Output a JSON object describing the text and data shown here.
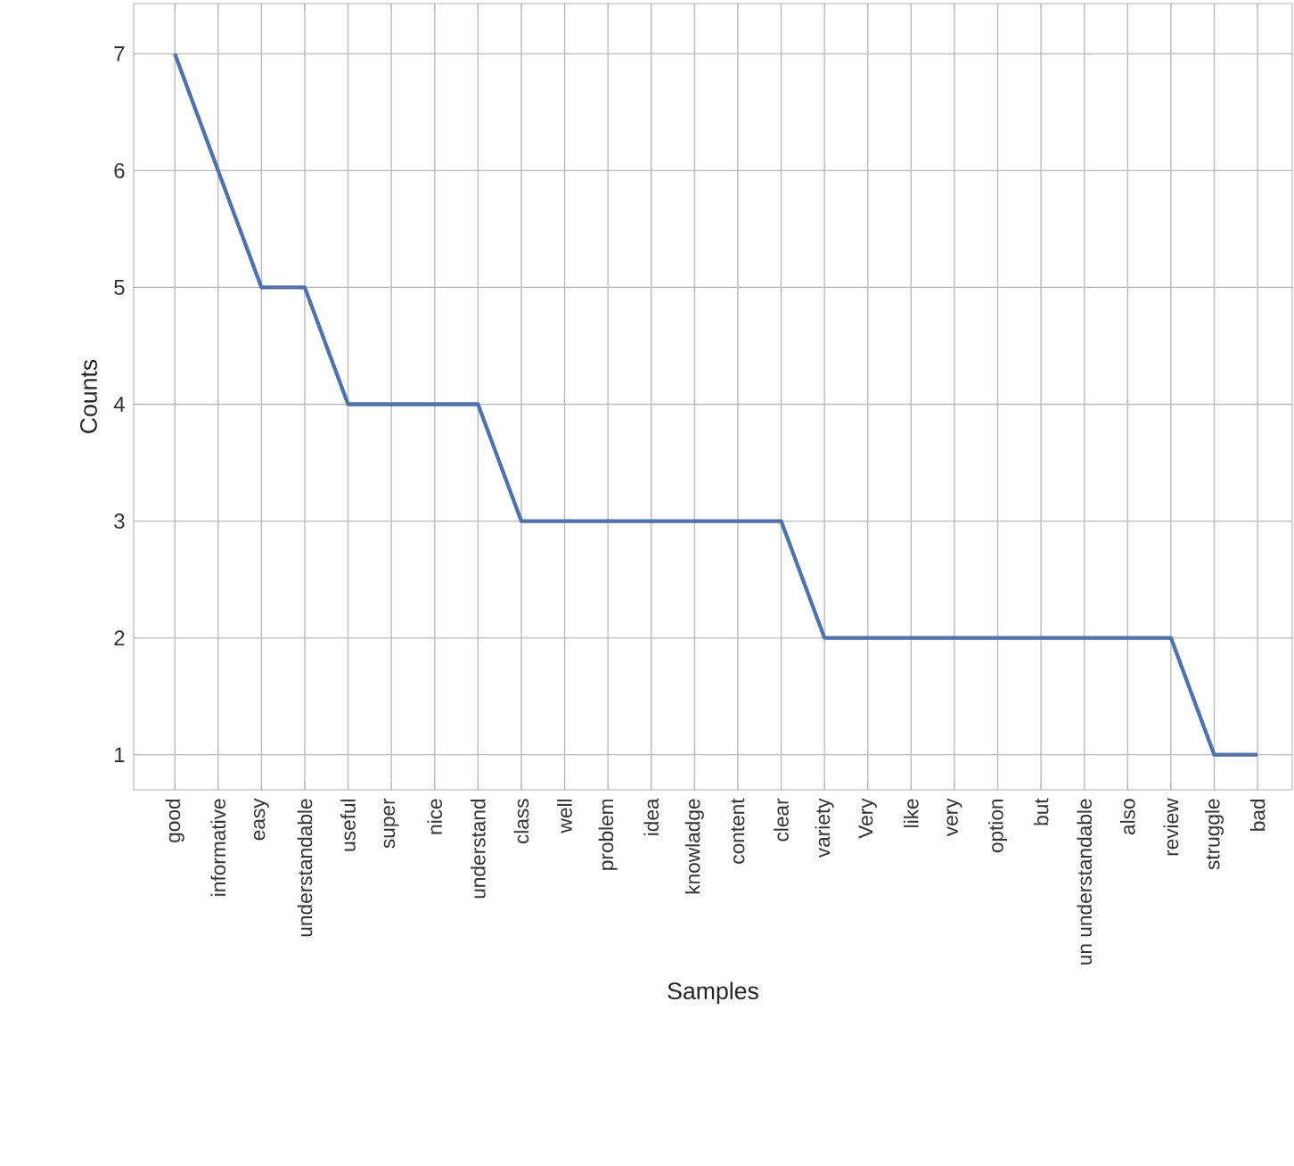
{
  "chart_data": {
    "type": "line",
    "xlabel": "Samples",
    "ylabel": "Counts",
    "categories": [
      "good",
      "informative",
      "easy",
      "understandable",
      "useful",
      "super",
      "nice",
      "understand",
      "class",
      "well",
      "problem",
      "idea",
      "knowladge",
      "content",
      "clear",
      "variety",
      "Very",
      "like",
      "very",
      "option",
      "but",
      "un understandable",
      "also",
      "review",
      "struggle",
      "bad"
    ],
    "values": [
      7,
      6,
      5,
      5,
      4,
      4,
      4,
      4,
      3,
      3,
      3,
      3,
      3,
      3,
      3,
      2,
      2,
      2,
      2,
      2,
      2,
      2,
      2,
      2,
      1,
      1
    ],
    "color": "#4c72b0",
    "ylim": [
      0.7,
      7.43
    ],
    "yticks": [
      1,
      2,
      3,
      4,
      5,
      6,
      7
    ],
    "grid": true
  }
}
